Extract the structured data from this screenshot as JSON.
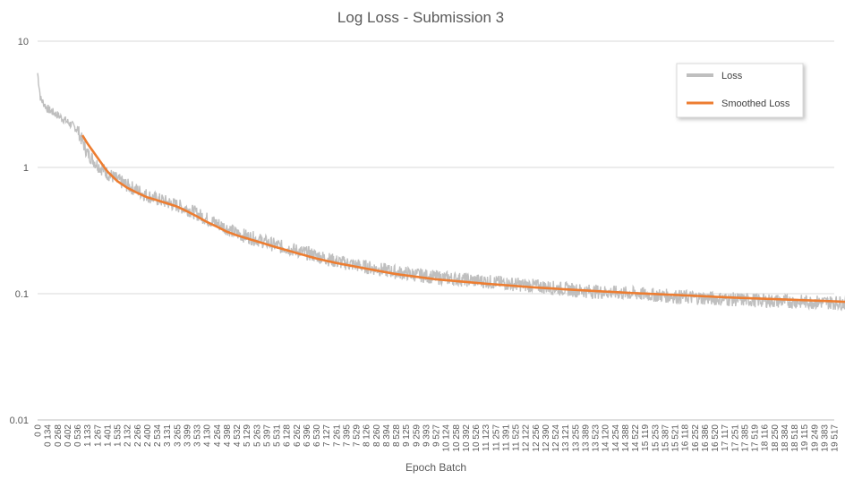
{
  "chart_data": {
    "type": "line",
    "title": "Log Loss - Submission 3",
    "xlabel": "Epoch Batch",
    "ylabel": "",
    "y_scale": "log",
    "ylim": [
      0.01,
      10
    ],
    "y_ticks": [
      "10",
      "1",
      "0.1",
      "0.01"
    ],
    "y_tick_values": [
      10,
      1,
      0.1,
      0.01
    ],
    "grid": "horizontal",
    "legend_position": "top-right",
    "x_tick_labels": [
      "0 0",
      "0 134",
      "0 268",
      "0 402",
      "0 536",
      "1 133",
      "1 267",
      "1 401",
      "1 535",
      "2 132",
      "2 266",
      "2 400",
      "2 534",
      "3 131",
      "3 265",
      "3 399",
      "3 533",
      "4 130",
      "4 264",
      "4 398",
      "4 532",
      "5 129",
      "5 263",
      "5 397",
      "5 531",
      "6 128",
      "6 262",
      "6 396",
      "6 530",
      "7 127",
      "7 261",
      "7 395",
      "7 529",
      "8 126",
      "8 260",
      "8 394",
      "8 528",
      "9 125",
      "9 259",
      "9 393",
      "9 527",
      "10 124",
      "10 258",
      "10 392",
      "10 526",
      "11 123",
      "11 257",
      "11 391",
      "11 525",
      "12 122",
      "12 256",
      "12 390",
      "12 524",
      "13 121",
      "13 255",
      "13 389",
      "13 523",
      "14 120",
      "14 254",
      "14 388",
      "14 522",
      "15 119",
      "15 253",
      "15 387",
      "15 521",
      "16 118",
      "16 252",
      "16 386",
      "16 520",
      "17 117",
      "17 251",
      "17 385",
      "17 519",
      "18 116",
      "18 250",
      "18 384",
      "18 518",
      "19 115",
      "19 249",
      "19 383",
      "19 517"
    ],
    "series": [
      {
        "name": "Loss",
        "color": "#BFBFBF",
        "x": [
          0,
          0.3,
          1,
          2,
          3,
          4,
          5,
          6,
          7,
          8,
          9,
          10,
          11,
          12,
          13,
          14,
          15,
          16,
          17,
          18,
          19,
          20,
          22,
          24,
          26,
          28,
          30,
          33,
          36,
          40,
          45,
          50,
          55,
          60,
          65,
          70,
          75,
          80,
          82.9
        ],
        "y": [
          5.6,
          3.5,
          2.9,
          2.6,
          2.3,
          2.0,
          1.3,
          1.05,
          0.9,
          0.8,
          0.72,
          0.66,
          0.6,
          0.56,
          0.53,
          0.5,
          0.47,
          0.43,
          0.39,
          0.36,
          0.33,
          0.3,
          0.27,
          0.24,
          0.22,
          0.2,
          0.18,
          0.163,
          0.148,
          0.135,
          0.125,
          0.115,
          0.105,
          0.1,
          0.094,
          0.09,
          0.087,
          0.085,
          0.084
        ],
        "noise": 0.13
      },
      {
        "name": "Smoothed Loss",
        "color": "#ED7D31",
        "x": [
          4.5,
          5,
          6,
          7,
          8,
          9,
          10,
          11,
          12,
          13,
          14,
          15,
          16,
          17,
          18,
          19,
          20,
          22,
          24,
          26,
          28,
          30,
          33,
          36,
          40,
          45,
          50,
          55,
          60,
          65,
          70,
          75,
          80,
          82.9
        ],
        "y": [
          1.8,
          1.55,
          1.2,
          0.93,
          0.78,
          0.69,
          0.63,
          0.58,
          0.55,
          0.52,
          0.49,
          0.45,
          0.41,
          0.37,
          0.34,
          0.31,
          0.29,
          0.26,
          0.233,
          0.21,
          0.19,
          0.175,
          0.158,
          0.143,
          0.13,
          0.12,
          0.112,
          0.106,
          0.101,
          0.097,
          0.093,
          0.09,
          0.087,
          0.085
        ]
      }
    ]
  }
}
